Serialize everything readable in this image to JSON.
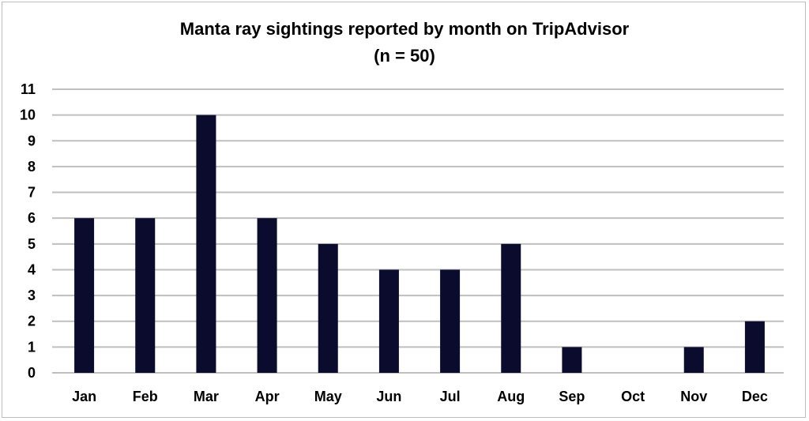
{
  "chart_data": {
    "type": "bar",
    "title": "Manta ray sightings reported by month on TripAdvisor",
    "subtitle": "(n = 50)",
    "xlabel": "",
    "ylabel": "",
    "categories": [
      "Jan",
      "Feb",
      "Mar",
      "Apr",
      "May",
      "Jun",
      "Jul",
      "Aug",
      "Sep",
      "Oct",
      "Nov",
      "Dec"
    ],
    "values": [
      6,
      6,
      10,
      6,
      5,
      4,
      4,
      5,
      1,
      0,
      1,
      2
    ],
    "ylim": [
      0,
      11
    ],
    "yticks": [
      0,
      1,
      2,
      3,
      4,
      5,
      6,
      7,
      8,
      9,
      10,
      11
    ],
    "grid": true,
    "legend": "none",
    "bar_color": "#0b0b2e",
    "grid_color": "#bfbfbf"
  }
}
